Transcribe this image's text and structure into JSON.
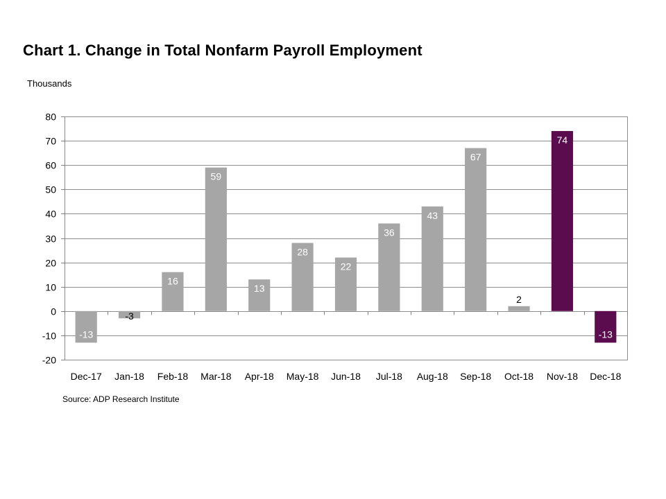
{
  "colors": {
    "bar_default": "#a6a6a6",
    "bar_highlight": "#5b0c4f",
    "grid": "#8c8c8c",
    "axis": "#808080",
    "label_inside": "#ffffff",
    "label_outside": "#000000"
  },
  "chart_data": {
    "type": "bar",
    "title": "Chart 1. Change in Total Nonfarm Payroll Employment",
    "ylabel": "Thousands",
    "source": "Source: ADP Research Institute",
    "categories": [
      "Dec-17",
      "Jan-18",
      "Feb-18",
      "Mar-18",
      "Apr-18",
      "May-18",
      "Jun-18",
      "Jul-18",
      "Aug-18",
      "Sep-18",
      "Oct-18",
      "Nov-18",
      "Dec-18"
    ],
    "values": [
      -13,
      -3,
      16,
      59,
      13,
      28,
      22,
      36,
      43,
      67,
      2,
      74,
      -13
    ],
    "data_labels": [
      "-13",
      "-3",
      "16",
      "59",
      "13",
      "28",
      "22",
      "36",
      "43",
      "67",
      "2",
      "74",
      "-13"
    ],
    "highlight": [
      false,
      false,
      false,
      false,
      false,
      false,
      false,
      false,
      false,
      false,
      false,
      true,
      true
    ],
    "ylim": [
      -20,
      80
    ],
    "yticks": [
      -20,
      -10,
      0,
      10,
      20,
      30,
      40,
      50,
      60,
      70,
      80
    ],
    "grid": true,
    "legend": "none"
  }
}
